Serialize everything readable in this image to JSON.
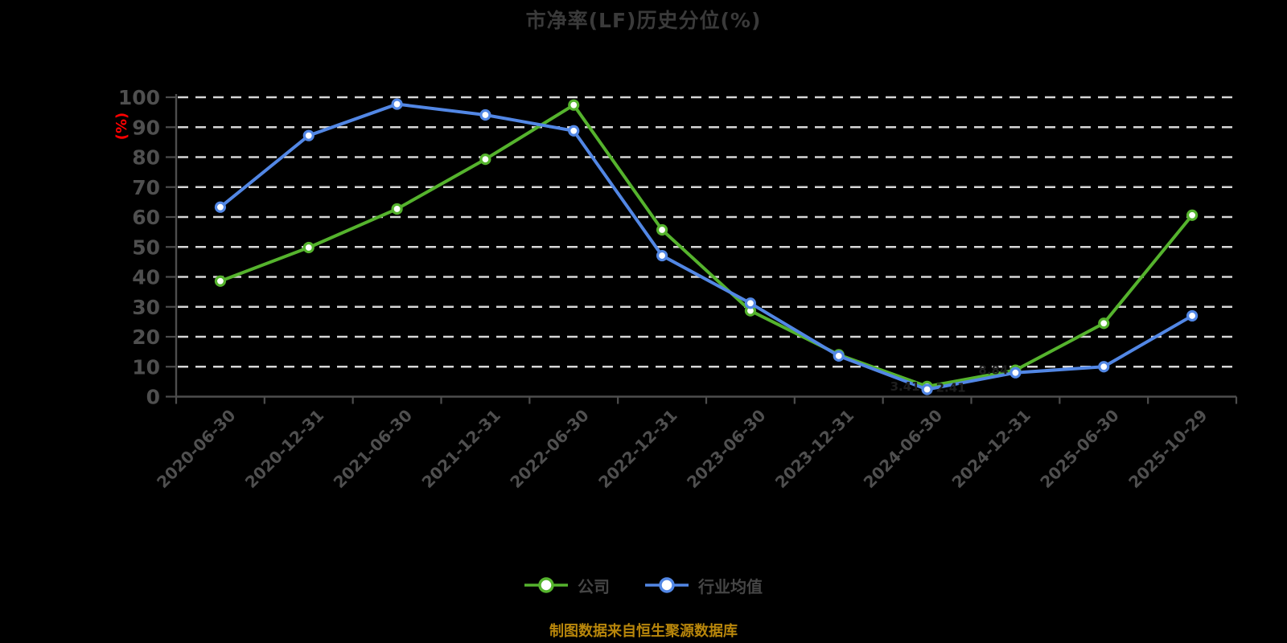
{
  "title": "市净率(LF)历史分位(%)",
  "caption": "制图数据来自恒生聚源数据库",
  "colors": {
    "background": "#000000",
    "title": "#3a3a3a",
    "axis": "#4d4d4d",
    "tick_label": "#4f4f4f",
    "gridline": "#d6d6d6",
    "y_axis_name": "#ff0000",
    "caption": "#b8860b",
    "legend_text": "#454545",
    "company": "#55b32d",
    "industry": "#5287e5"
  },
  "y_axis": {
    "name": "(%)",
    "ticks": [
      0,
      10,
      20,
      30,
      40,
      50,
      60,
      70,
      80,
      90,
      100
    ]
  },
  "legend": {
    "items": [
      {
        "label": "公司",
        "key": "company"
      },
      {
        "label": "行业均值",
        "key": "industry"
      }
    ]
  },
  "chart_data": {
    "type": "line",
    "title": "市净率(LF)历史分位(%)",
    "categories": [
      "2020-06-30",
      "2020-12-31",
      "2021-06-30",
      "2021-12-31",
      "2022-06-30",
      "2022-12-31",
      "2023-06-30",
      "2023-12-31",
      "2024-06-30",
      "2024-12-31",
      "2025-06-30",
      "2025-10-29"
    ],
    "series": [
      {
        "name": "公司",
        "key": "company",
        "color": "#55b32d",
        "values": [
          38.6,
          49.8,
          62.7,
          79.3,
          97.4,
          55.7,
          28.7,
          14.0,
          3.41,
          8.84,
          24.5,
          60.6
        ]
      },
      {
        "name": "行业均值",
        "key": "industry",
        "color": "#5287e5",
        "values": [
          63.3,
          87.2,
          97.7,
          94.1,
          88.8,
          47.1,
          31.2,
          13.6,
          2.41,
          8.0,
          10.0,
          27.0
        ]
      }
    ],
    "ylim": [
      0,
      100
    ],
    "y_step": 10,
    "ylabel": "(%)",
    "grid": "horizontal-dashed",
    "legend_position": "bottom",
    "point_labels": [
      {
        "series": "公司",
        "index": 8,
        "text": "3.41",
        "side": "left"
      },
      {
        "series": "行业均值",
        "index": 8,
        "text": "2.41",
        "side": "right"
      },
      {
        "series": "公司",
        "index": 9,
        "text": "8.84",
        "side": "left"
      }
    ]
  }
}
